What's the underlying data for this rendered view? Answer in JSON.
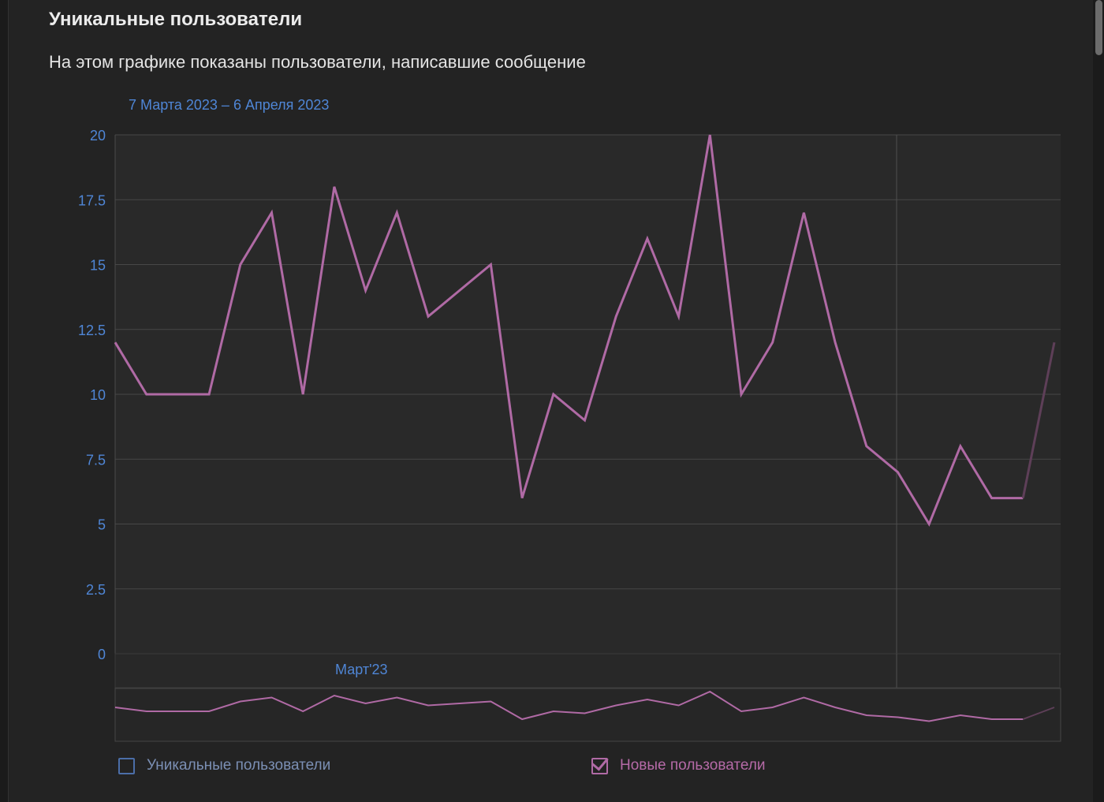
{
  "card": {
    "title": "Уникальные пользователи",
    "subtitle": "На этом графике показаны пользователи, написавшие сообщение",
    "date_range": "7 Марта 2023 – 6 Апреля 2023"
  },
  "chart_data": {
    "type": "line",
    "ylim": [
      0,
      20
    ],
    "yticks": [
      "0",
      "2.5",
      "5",
      "7.5",
      "10",
      "12.5",
      "15",
      "17.5",
      "20"
    ],
    "x_axis_label": "Март'23",
    "grid": true,
    "series": [
      {
        "name": "Новые пользователи",
        "color": "#b06aa5",
        "values": [
          12,
          10,
          10,
          10,
          15,
          17,
          10,
          18,
          14,
          17,
          13,
          14,
          15,
          6,
          10,
          9,
          13,
          16,
          13,
          20,
          10,
          12,
          17,
          12,
          8,
          7,
          5,
          8,
          6,
          6,
          12
        ]
      }
    ]
  },
  "legend": {
    "unique_label": "Уникальные пользователи",
    "unique_checked": false,
    "new_label": "Новые пользователи",
    "new_checked": true
  },
  "colors": {
    "background": "#232323",
    "plot_background": "#292929",
    "accent_blue": "#4f86d6",
    "series_pink": "#b06aa5"
  }
}
